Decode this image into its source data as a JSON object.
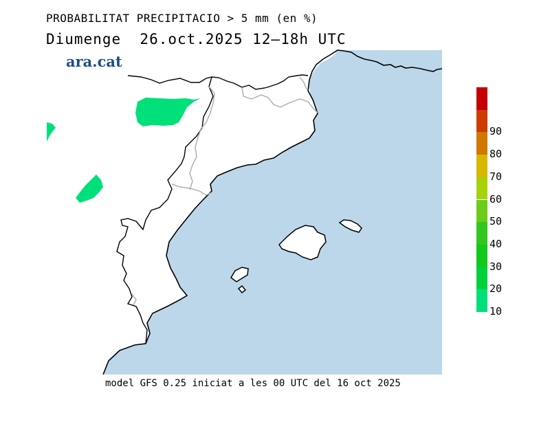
{
  "header": {
    "title": "PROBABILITAT PRECIPITACIO > 5 mm (en %)",
    "subtitle": "Diumenge  26.oct.2025 12—18h UTC"
  },
  "logo": {
    "text": "ara.cat"
  },
  "footer": {
    "text": "model GFS 0.25 iniciat a les 00 UTC del 16 oct 2025"
  },
  "map": {
    "sea_color": "#bcd7ea",
    "land_color": "#ffffff",
    "coast_color": "#000000",
    "border_color": "#aaaaaa",
    "precip_color": "#00e07a"
  },
  "legend": {
    "items": [
      {
        "label": "10",
        "color": "#00e07a"
      },
      {
        "label": "20",
        "color": "#00d23c"
      },
      {
        "label": "30",
        "color": "#12c81a"
      },
      {
        "label": "40",
        "color": "#30c81c"
      },
      {
        "label": "50",
        "color": "#6ccc1a"
      },
      {
        "label": "60",
        "color": "#a6d20c"
      },
      {
        "label": "70",
        "color": "#d6b800"
      },
      {
        "label": "80",
        "color": "#d07800"
      },
      {
        "label": "90",
        "color": "#cc3c00"
      },
      {
        "label": "",
        "color": "#c40000"
      }
    ]
  }
}
